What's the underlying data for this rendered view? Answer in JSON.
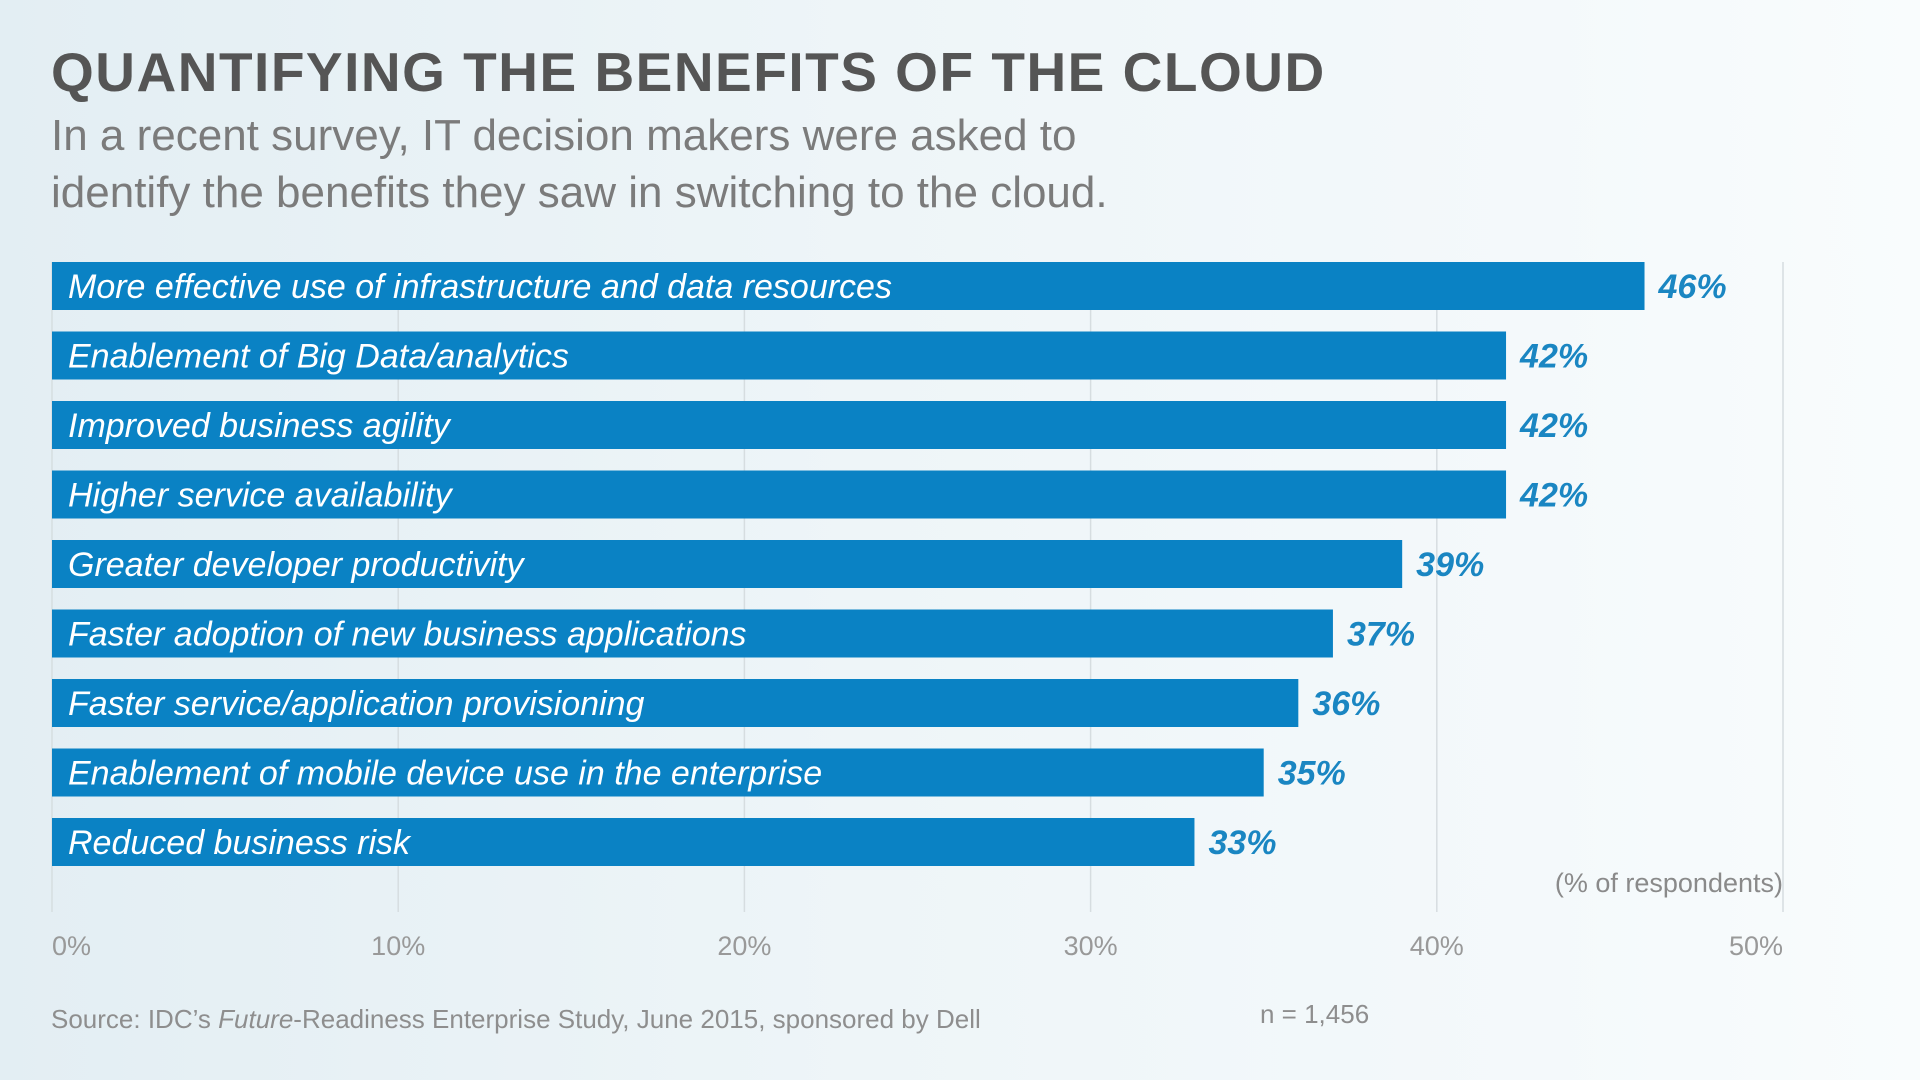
{
  "header": {
    "title": "QUANTIFYING THE BENEFITS OF THE CLOUD",
    "subtitle_line1": "In a recent survey, IT decision makers were asked to",
    "subtitle_line2": "identify the benefits they saw in switching to the cloud."
  },
  "footer": {
    "source_prefix": "Source: IDC’s ",
    "source_italic": "Future",
    "source_suffix": "-Readiness Enterprise Study, June 2015, sponsored by Dell",
    "sample_size": "n = 1,456"
  },
  "colors": {
    "bar": "#0a82c4",
    "value_text": "#1a86c2",
    "grid": "#d6dde0",
    "title": "#555555",
    "subtitle": "#7b7b7b"
  },
  "chart_data": {
    "type": "bar",
    "orientation": "horizontal",
    "title": "QUANTIFYING THE BENEFITS OF THE CLOUD",
    "subtitle": "In a recent survey, IT decision makers were asked to identify the benefits they saw in switching to the cloud.",
    "xlabel": "(% of respondents)",
    "ylabel": "",
    "xlim": [
      0,
      50
    ],
    "ticks": [
      0,
      10,
      20,
      30,
      40,
      50
    ],
    "tick_labels": [
      "0%",
      "10%",
      "20%",
      "30%",
      "40%",
      "50%"
    ],
    "grid": true,
    "legend": "none",
    "categories": [
      "More effective use of infrastructure and data resources",
      "Enablement of Big Data/analytics",
      "Improved business agility",
      "Higher service availability",
      "Greater developer productivity",
      "Faster adoption of new business applications",
      "Faster service/application provisioning",
      "Enablement of mobile device use in the enterprise",
      "Reduced business risk"
    ],
    "values": [
      46,
      42,
      42,
      42,
      39,
      37,
      36,
      35,
      33
    ],
    "value_labels": [
      "46%",
      "42%",
      "42%",
      "42%",
      "39%",
      "37%",
      "36%",
      "35%",
      "33%"
    ]
  }
}
